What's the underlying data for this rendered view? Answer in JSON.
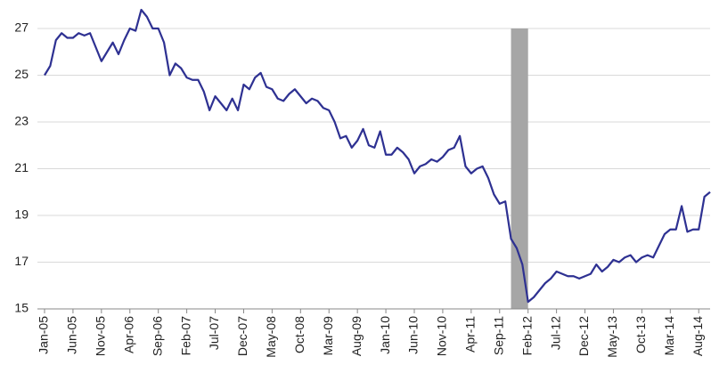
{
  "chart_data": {
    "type": "line",
    "categories": [
      "Jan-05",
      null,
      null,
      null,
      null,
      "Jun-05",
      null,
      null,
      null,
      null,
      "Nov-05",
      null,
      null,
      null,
      null,
      "Apr-06",
      null,
      null,
      null,
      null,
      "Sep-06",
      null,
      null,
      null,
      null,
      "Feb-07",
      null,
      null,
      null,
      null,
      "Jul-07",
      null,
      null,
      null,
      null,
      "Dec-07",
      null,
      null,
      null,
      null,
      "May-08",
      null,
      null,
      null,
      null,
      "Oct-08",
      null,
      null,
      null,
      null,
      "Mar-09",
      null,
      null,
      null,
      null,
      "Aug-09",
      null,
      null,
      null,
      null,
      "Jan-10",
      null,
      null,
      null,
      null,
      "Jun-10",
      null,
      null,
      null,
      null,
      "Nov-10",
      null,
      null,
      null,
      null,
      "Apr-11",
      null,
      null,
      null,
      null,
      "Sep-11",
      null,
      null,
      null,
      null,
      "Feb-12",
      null,
      null,
      null,
      null,
      "Jul-12",
      null,
      null,
      null,
      null,
      "Dec-12",
      null,
      null,
      null,
      null,
      "May-13",
      null,
      null,
      null,
      null,
      "Oct-13",
      null,
      null,
      null,
      null,
      "Mar-14",
      null,
      null,
      null,
      null,
      "Aug-14",
      null,
      null
    ],
    "values": [
      25.0,
      25.4,
      26.5,
      26.8,
      26.6,
      26.6,
      26.8,
      26.7,
      26.8,
      26.2,
      25.6,
      26.0,
      26.4,
      25.9,
      26.5,
      27.0,
      26.9,
      27.8,
      27.5,
      27.0,
      27.0,
      26.4,
      25.0,
      25.5,
      25.3,
      24.9,
      24.8,
      24.8,
      24.3,
      23.5,
      24.1,
      23.8,
      23.5,
      24.0,
      23.5,
      24.6,
      24.4,
      24.9,
      25.1,
      24.5,
      24.4,
      24.0,
      23.9,
      24.2,
      24.4,
      24.1,
      23.8,
      24.0,
      23.9,
      23.6,
      23.5,
      23.0,
      22.3,
      22.4,
      21.9,
      22.2,
      22.7,
      22.0,
      21.9,
      22.6,
      21.6,
      21.6,
      21.9,
      21.7,
      21.4,
      20.8,
      21.1,
      21.2,
      21.4,
      21.3,
      21.5,
      21.8,
      21.9,
      22.4,
      21.1,
      20.8,
      21.0,
      21.1,
      20.6,
      19.9,
      19.5,
      19.6,
      18.0,
      17.6,
      16.9,
      15.3,
      15.5,
      15.8,
      16.1,
      16.3,
      16.6,
      16.5,
      16.4,
      16.4,
      16.3,
      16.4,
      16.5,
      16.9,
      16.6,
      16.8,
      17.1,
      17.0,
      17.2,
      17.3,
      17.0,
      17.2,
      17.3,
      17.2,
      17.7,
      18.2,
      18.4,
      18.4,
      19.4,
      18.3,
      18.4,
      18.4,
      19.8,
      20.0
    ],
    "color": "#2e3192",
    "highlight": [
      82,
      85
    ],
    "highlight_color": "#a6a6a6",
    "ylim": [
      15,
      27
    ],
    "yticks": [
      15,
      17,
      19,
      21,
      23,
      25,
      27
    ],
    "grid": true
  }
}
